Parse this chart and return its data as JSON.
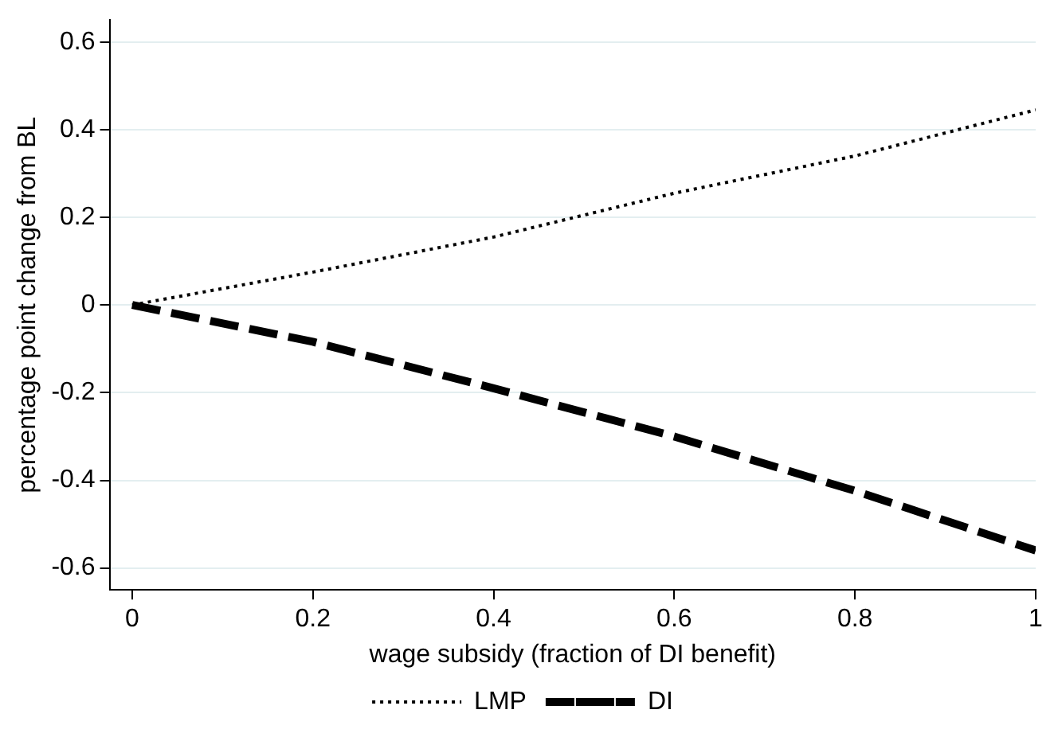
{
  "chart_data": {
    "type": "line",
    "xlabel": "wage subsidy (fraction of DI benefit)",
    "ylabel": "percentage point change from BL",
    "x": [
      0,
      0.2,
      0.4,
      0.6,
      0.8,
      1
    ],
    "series": [
      {
        "name": "LMP",
        "color": "#000000",
        "line_style": "dotted",
        "values": [
          0,
          0.075,
          0.155,
          0.255,
          0.34,
          0.445
        ]
      },
      {
        "name": "DI",
        "color": "#000000",
        "line_style": "dashed",
        "values": [
          0,
          -0.084,
          -0.19,
          -0.3,
          -0.424,
          -0.56
        ]
      }
    ],
    "xlim": [
      -0.025,
      1
    ],
    "xticks": [
      0,
      0.2,
      0.4,
      0.6,
      0.8,
      1
    ],
    "ylim": [
      -0.65,
      0.65
    ],
    "yticks": [
      -0.6,
      -0.4,
      -0.2,
      0,
      0.2,
      0.4,
      0.6
    ],
    "grid": "y",
    "legend": "bottom",
    "marker": "none"
  }
}
